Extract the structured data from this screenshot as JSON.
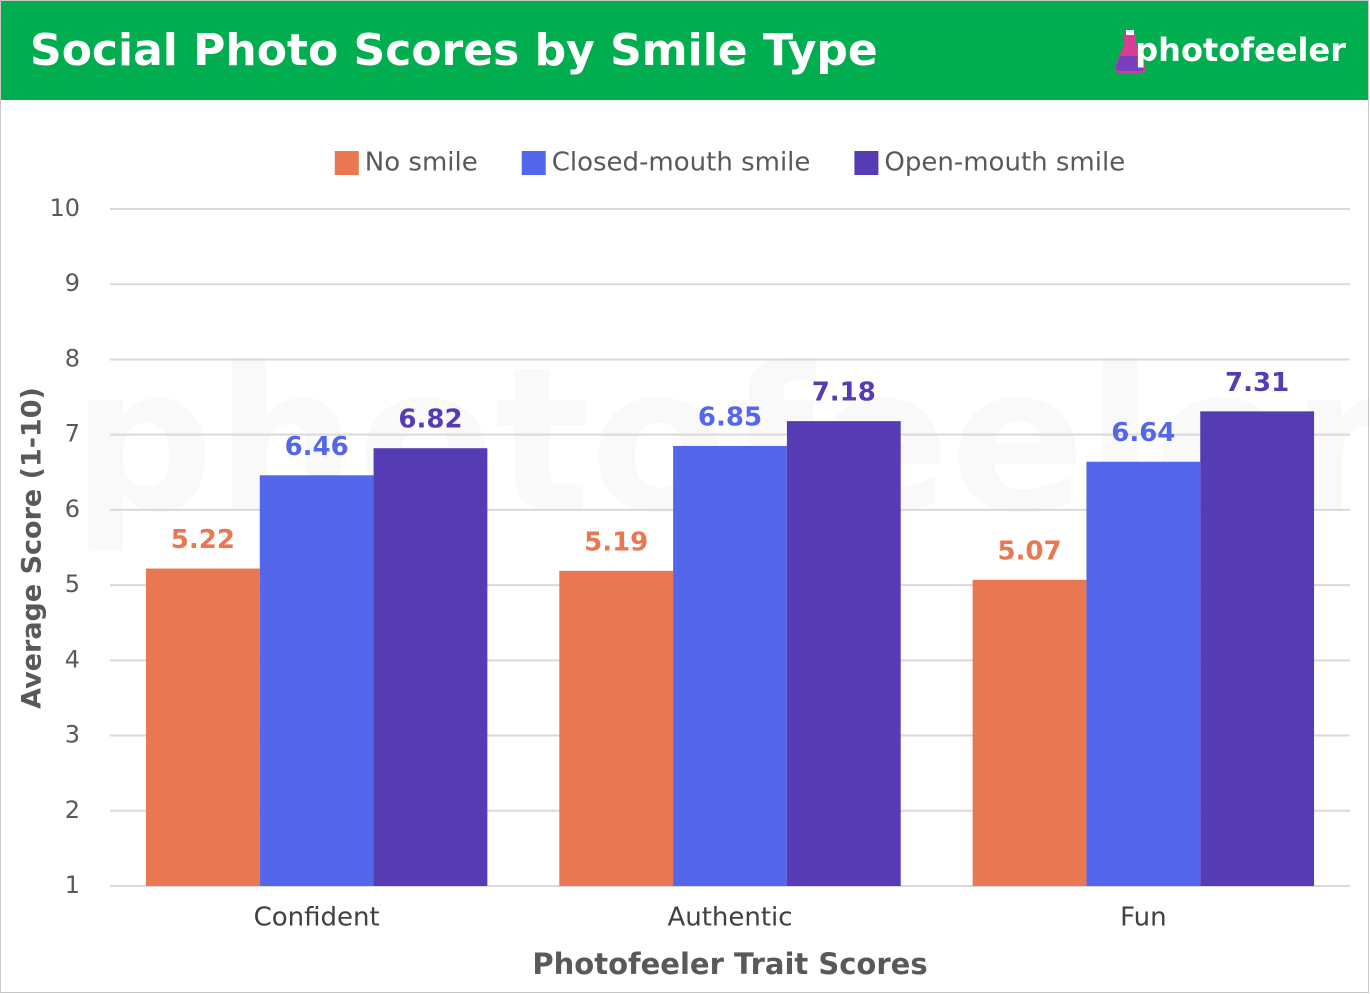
{
  "chart_data": {
    "type": "bar",
    "title": "Social Photo Scores by Smile Type",
    "brand": "photofeeler",
    "x_label": "Photofeeler Trait Scores",
    "y_label": "Average Score (1-10)",
    "categories": [
      "Confident",
      "Authentic",
      "Fun"
    ],
    "series": [
      {
        "name": "No smile",
        "color": "#e87752",
        "values": [
          5.22,
          5.19,
          5.07
        ]
      },
      {
        "name": "Closed-mouth smile",
        "color": "#5467ea",
        "values": [
          6.46,
          6.85,
          6.64
        ]
      },
      {
        "name": "Open-mouth smile",
        "color": "#553cb5",
        "values": [
          6.82,
          7.18,
          7.31
        ]
      }
    ],
    "ylim": [
      1,
      10
    ],
    "yticks": [
      1,
      2,
      3,
      4,
      5,
      6,
      7,
      8,
      9,
      10
    ],
    "grid": true,
    "legend": "top"
  }
}
